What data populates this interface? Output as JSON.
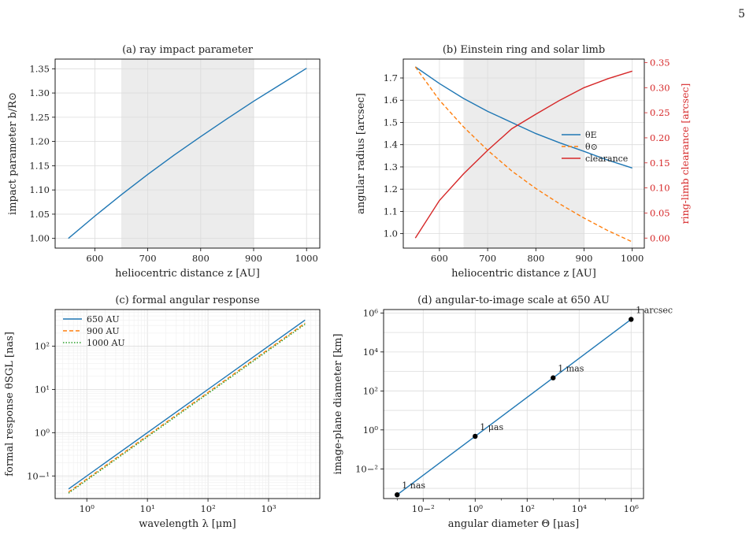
{
  "page": {
    "number": "5"
  },
  "chart_data": [
    {
      "id": "a",
      "type": "line",
      "title": "(a) ray impact parameter",
      "xlabel": "heliocentric distance z [AU]",
      "ylabel": "impact parameter b/R⊙",
      "xlim": [
        525,
        1025
      ],
      "ylim": [
        0.98,
        1.37
      ],
      "xticks": [
        600,
        700,
        800,
        900,
        1000
      ],
      "yticks": [
        1.0,
        1.05,
        1.1,
        1.15,
        1.2,
        1.25,
        1.3,
        1.35
      ],
      "shaded_band": [
        650,
        900
      ],
      "grid": true,
      "series": [
        {
          "color": "#1f77b4",
          "dash": "solid",
          "x": [
            550,
            600,
            650,
            700,
            750,
            800,
            850,
            900,
            950,
            1000
          ],
          "y": [
            1.0,
            1.046,
            1.09,
            1.132,
            1.172,
            1.21,
            1.247,
            1.283,
            1.317,
            1.351
          ]
        }
      ]
    },
    {
      "id": "b",
      "type": "line",
      "title": "(b) Einstein ring and solar limb",
      "xlabel": "heliocentric distance z [AU]",
      "ylabel": "angular radius [arcsec]",
      "ylabel_right": "ring-limb clearance [arcsec]",
      "xlim": [
        525,
        1025
      ],
      "ylim": [
        0.935,
        1.785
      ],
      "ylim_right": [
        -0.02,
        0.357
      ],
      "xticks": [
        600,
        700,
        800,
        900,
        1000
      ],
      "yticks": [
        1.0,
        1.1,
        1.2,
        1.3,
        1.4,
        1.5,
        1.6,
        1.7
      ],
      "yticks_right": [
        0.0,
        0.05,
        0.1,
        0.15,
        0.2,
        0.25,
        0.3,
        0.35
      ],
      "right_axis_color": "#d62728",
      "shaded_band": [
        650,
        900
      ],
      "grid": true,
      "legend": "center-right",
      "series": [
        {
          "name": "θE",
          "color": "#1f77b4",
          "dash": "solid",
          "axis": "left",
          "x": [
            550,
            600,
            650,
            700,
            750,
            800,
            850,
            900,
            950,
            1000
          ],
          "y": [
            1.75,
            1.675,
            1.608,
            1.55,
            1.5,
            1.45,
            1.408,
            1.37,
            1.33,
            1.295
          ]
        },
        {
          "name": "θ⊙",
          "color": "#ff7f0e",
          "dash": "dashed",
          "axis": "left",
          "x": [
            550,
            600,
            650,
            700,
            750,
            800,
            850,
            900,
            950,
            1000
          ],
          "y": [
            1.75,
            1.6,
            1.48,
            1.375,
            1.282,
            1.203,
            1.133,
            1.07,
            1.013,
            0.963
          ]
        },
        {
          "name": "clearance",
          "color": "#d62728",
          "dash": "solid",
          "axis": "right",
          "x": [
            550,
            600,
            650,
            700,
            750,
            800,
            850,
            900,
            950,
            1000
          ],
          "y": [
            0.0,
            0.075,
            0.128,
            0.175,
            0.218,
            0.247,
            0.275,
            0.3,
            0.318,
            0.333
          ]
        }
      ]
    },
    {
      "id": "c",
      "type": "line",
      "scale": "log-log",
      "title": "(c) formal angular response",
      "xlabel": "wavelength λ [μm]",
      "ylabel": "formal response θSGL [nas]",
      "xlim": [
        0.3,
        7000
      ],
      "ylim": [
        0.03,
        700
      ],
      "xticks": [
        1,
        10,
        100,
        1000
      ],
      "yticks": [
        0.1,
        1,
        10,
        100
      ],
      "grid": true,
      "legend": "top-left",
      "series": [
        {
          "name": "650 AU",
          "color": "#1f77b4",
          "dash": "solid",
          "x": [
            0.5,
            4000
          ],
          "y": [
            0.05,
            400
          ]
        },
        {
          "name": "900 AU",
          "color": "#ff7f0e",
          "dash": "dashed",
          "x": [
            0.5,
            4000
          ],
          "y": [
            0.0425,
            340
          ]
        },
        {
          "name": "1000 AU",
          "color": "#2ca02c",
          "dash": "dotted",
          "x": [
            0.5,
            4000
          ],
          "y": [
            0.04,
            320
          ]
        }
      ]
    },
    {
      "id": "d",
      "type": "line",
      "scale": "log-log",
      "title": "(d) angular-to-image scale at 650 AU",
      "xlabel": "angular diameter Θ [μas]",
      "ylabel": "image-plane diameter [km]",
      "xlim": [
        0.0003,
        3000000
      ],
      "ylim": [
        0.0003,
        1500000
      ],
      "xticks": [
        0.01,
        1,
        100,
        10000,
        1000000
      ],
      "yticks": [
        0.01,
        1,
        100,
        10000,
        1000000
      ],
      "grid": true,
      "series": [
        {
          "color": "#1f77b4",
          "dash": "solid",
          "x": [
            0.001,
            1000000
          ],
          "y": [
            0.00047,
            470000
          ]
        }
      ],
      "points": [
        {
          "label": "1 nas",
          "x": 0.001,
          "y": 0.00047
        },
        {
          "label": "1 μas",
          "x": 1,
          "y": 0.47
        },
        {
          "label": "1 mas",
          "x": 1000,
          "y": 470
        },
        {
          "label": "1 arcsec",
          "x": 1000000,
          "y": 470000
        }
      ]
    }
  ]
}
